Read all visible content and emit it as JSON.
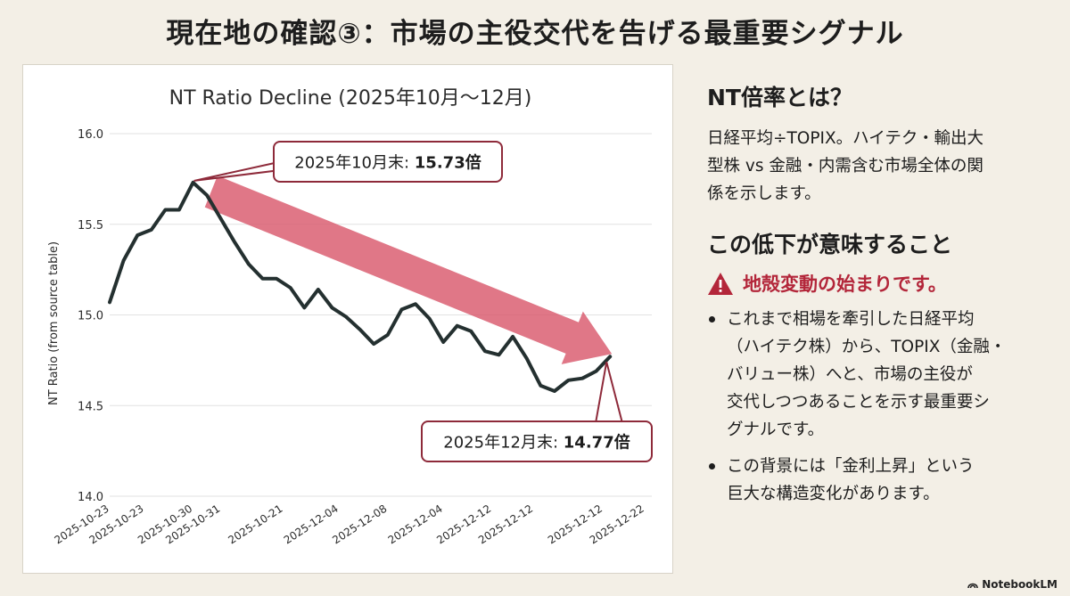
{
  "header": {
    "title": "現在地の確認③：市場の主役交代を告げる最重要シグナル"
  },
  "chart_data": {
    "type": "line",
    "title": "NT Ratio Decline (2025年10月～12月)",
    "ylabel": "NT Ratio (from source table)",
    "xlabel": "",
    "ylim": [
      14.0,
      16.0
    ],
    "yticks": [
      "16.0",
      "15.5",
      "15.0",
      "14.5",
      "14.0"
    ],
    "yticks_values": [
      16.0,
      15.5,
      15.0,
      14.5,
      14.0
    ],
    "xtick_labels": [
      "2025-10-23",
      "2025-10-23",
      "2025-10-30",
      "2025-10-31",
      "2025-10-21",
      "2025-12-04",
      "2025-12-08",
      "2025-12-04",
      "2025-12-12",
      "2025-12-12",
      "2025-12-12",
      "2025-12-22"
    ],
    "xtick_positions": [
      0,
      2.5,
      6,
      8,
      12.5,
      16.5,
      20,
      24,
      27.5,
      30.5,
      35.5,
      38.5
    ],
    "x": [
      0,
      1,
      2,
      3,
      4,
      5,
      6,
      7,
      8,
      9,
      10,
      11,
      12,
      13,
      14,
      15,
      16,
      17,
      18,
      19,
      20,
      21,
      22,
      23,
      24,
      25,
      26,
      27,
      28,
      29,
      30,
      31,
      32,
      33,
      34,
      35,
      36,
      37,
      38,
      39
    ],
    "series": [
      {
        "values": [
          15.07,
          15.3,
          15.44,
          15.47,
          15.58,
          15.58,
          15.73,
          15.66,
          15.53,
          15.4,
          15.28,
          15.2,
          15.2,
          15.15,
          15.04,
          15.14,
          15.04,
          14.99,
          14.92,
          14.84,
          14.89,
          15.03,
          15.06,
          14.98,
          14.85,
          14.94,
          14.91,
          14.8,
          14.78,
          14.88,
          14.76,
          14.61,
          14.58,
          14.64,
          14.65,
          14.69,
          14.77,
          14.77,
          14.77,
          14.77
        ]
      }
    ],
    "last_index": 36,
    "annotations": [
      {
        "label": "2025年10月末: ",
        "value": "15.73倍"
      },
      {
        "label": "2025年12月末: ",
        "value": "14.77倍"
      }
    ],
    "trend_arrow_color": "#d9596c",
    "line_color": "#243030",
    "callout_border_color": "#8e2a3a"
  },
  "side": {
    "section1_heading": "NT倍率とは？",
    "section1_lines": [
      "日経平均÷TOPIX。ハイテク・輸出大",
      "型株 vs 金融・内需含む市場全体の関",
      "係を示します。"
    ],
    "section2_heading": "この低下が意味すること",
    "warning_text": "地殻変動の始まりです。",
    "bullet1_lines": [
      "これまで相場を牽引した日経平均",
      "（ハイテク株）から、TOPIX（金融・",
      "バリュー株）へと、市場の主役が",
      "交代しつつあることを示す最重要シ",
      "グナルです。"
    ],
    "bullet2_lines": [
      "この背景には「金利上昇」という",
      "巨大な構造変化があります。"
    ],
    "warning_color": "#b3263a"
  },
  "brand": {
    "label": "NotebookLM",
    "icon": "notebooklm-icon"
  }
}
